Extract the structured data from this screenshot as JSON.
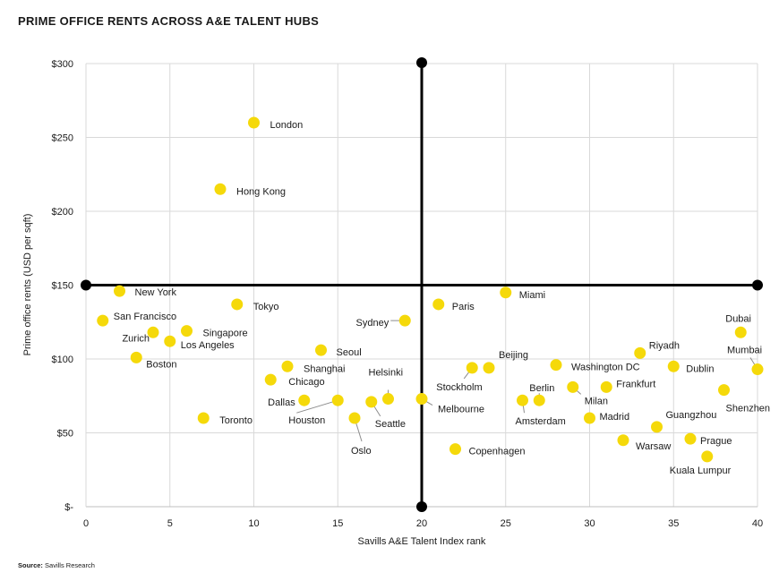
{
  "title": "PRIME OFFICE RENTS ACROSS A&E TALENT HUBS",
  "source_label": "Source:",
  "source_text": "Savills Research",
  "chart_data": {
    "type": "scatter",
    "title": "PRIME OFFICE RENTS ACROSS A&E TALENT HUBS",
    "xlabel": "Savills A&E Talent Index rank",
    "ylabel": "Prime office rents (USD per sqft)",
    "xlim": [
      0,
      40
    ],
    "ylim": [
      0,
      300
    ],
    "x_ticks": [
      "0",
      "5",
      "10",
      "15",
      "20",
      "25",
      "30",
      "35",
      "40"
    ],
    "y_ticks": [
      "$-",
      "$50",
      "$100",
      "$150",
      "$200",
      "$250",
      "$300"
    ],
    "grid": true,
    "quadrant_lines": {
      "x": 20,
      "y": 150
    },
    "point_color": "#f5d90a",
    "axis_color": "#000000",
    "points": [
      {
        "name": "London",
        "x": 10,
        "y": 260
      },
      {
        "name": "Hong Kong",
        "x": 8,
        "y": 215
      },
      {
        "name": "New York",
        "x": 2,
        "y": 146
      },
      {
        "name": "San Francisco",
        "x": 1,
        "y": 126
      },
      {
        "name": "Zurich",
        "x": 4,
        "y": 118
      },
      {
        "name": "Boston",
        "x": 3,
        "y": 101
      },
      {
        "name": "Los Angeles",
        "x": 5,
        "y": 112
      },
      {
        "name": "Singapore",
        "x": 6,
        "y": 119
      },
      {
        "name": "Toronto",
        "x": 7,
        "y": 60
      },
      {
        "name": "Tokyo",
        "x": 9,
        "y": 137
      },
      {
        "name": "Chicago",
        "x": 11,
        "y": 86
      },
      {
        "name": "Shanghai",
        "x": 12,
        "y": 95
      },
      {
        "name": "Dallas",
        "x": 13,
        "y": 72
      },
      {
        "name": "Seoul",
        "x": 14,
        "y": 106
      },
      {
        "name": "Houston",
        "x": 15,
        "y": 72
      },
      {
        "name": "Oslo",
        "x": 16,
        "y": 60
      },
      {
        "name": "Seattle",
        "x": 17,
        "y": 71
      },
      {
        "name": "Helsinki",
        "x": 18,
        "y": 73
      },
      {
        "name": "Sydney",
        "x": 19,
        "y": 126
      },
      {
        "name": "Melbourne",
        "x": 20,
        "y": 73
      },
      {
        "name": "Paris",
        "x": 21,
        "y": 137
      },
      {
        "name": "Copenhagen",
        "x": 22,
        "y": 39
      },
      {
        "name": "Stockholm",
        "x": 23,
        "y": 94
      },
      {
        "name": "Beijing",
        "x": 24,
        "y": 94
      },
      {
        "name": "Miami",
        "x": 25,
        "y": 145
      },
      {
        "name": "Amsterdam",
        "x": 26,
        "y": 72
      },
      {
        "name": "Berlin",
        "x": 27,
        "y": 72
      },
      {
        "name": "Washington DC",
        "x": 28,
        "y": 96
      },
      {
        "name": "Milan",
        "x": 29,
        "y": 81
      },
      {
        "name": "Madrid",
        "x": 30,
        "y": 60
      },
      {
        "name": "Frankfurt",
        "x": 31,
        "y": 81
      },
      {
        "name": "Warsaw",
        "x": 32,
        "y": 45
      },
      {
        "name": "Riyadh",
        "x": 33,
        "y": 104
      },
      {
        "name": "Guangzhou",
        "x": 34,
        "y": 54
      },
      {
        "name": "Dublin",
        "x": 35,
        "y": 95
      },
      {
        "name": "Prague",
        "x": 36,
        "y": 46
      },
      {
        "name": "Kuala Lumpur",
        "x": 37,
        "y": 34
      },
      {
        "name": "Shenzhen",
        "x": 38,
        "y": 79
      },
      {
        "name": "Dubai",
        "x": 39,
        "y": 118
      },
      {
        "name": "Mumbai",
        "x": 40,
        "y": 93
      }
    ]
  }
}
